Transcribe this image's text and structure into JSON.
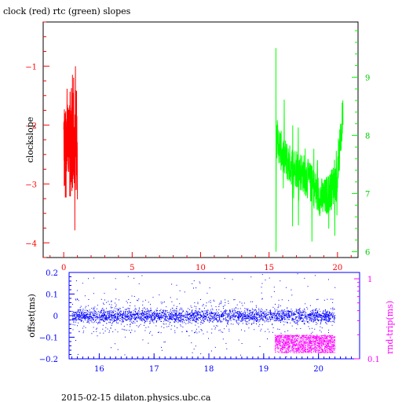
{
  "chart_data": [
    {
      "type": "line",
      "title": "clock (red) rtc (green) slopes",
      "ylabel": "clockslope",
      "xlim": [
        -1.5,
        21.5
      ],
      "ylim": [
        -4.25,
        -0.25
      ],
      "y2lim": [
        5.9,
        9.95
      ],
      "grid": false,
      "x_ticks": [
        0,
        5,
        10,
        15,
        20
      ],
      "y_ticks": [
        -4,
        -3,
        -2,
        -1
      ],
      "y2_ticks": [
        6,
        7,
        8,
        9
      ],
      "colors": {
        "clock": "#ff0000",
        "rtc": "#00ff00",
        "axis": "#000000"
      },
      "series": [
        {
          "name": "clock",
          "axis": "left",
          "x_range": [
            0.0,
            1.0
          ],
          "y_center": -2.3,
          "y_min": -4.1,
          "y_max": -0.5
        },
        {
          "name": "rtc",
          "axis": "right",
          "x_range": [
            15.5,
            20.4
          ],
          "x": [
            15.5,
            16.0,
            16.5,
            17.0,
            17.5,
            18.0,
            18.5,
            19.0,
            19.5,
            20.0,
            20.4
          ],
          "y": [
            8.0,
            7.65,
            7.5,
            7.45,
            7.35,
            7.2,
            7.0,
            6.9,
            7.05,
            7.3,
            8.4
          ]
        }
      ]
    },
    {
      "type": "scatter",
      "ylabel": "offset(ms)",
      "y2label": "rnd-trip(ms)",
      "xlim": [
        15.45,
        20.75
      ],
      "ylim": [
        -0.2,
        0.2
      ],
      "x_ticks": [
        16,
        17,
        18,
        19,
        20
      ],
      "y_ticks": [
        "-0.2",
        "-0.1",
        "0",
        "0.1",
        "0.2"
      ],
      "y2_ticks": [
        "0.1",
        "1"
      ],
      "y2_scale": "log",
      "colors": {
        "offset": "#0000ff",
        "rndtrip": "#ff00ff",
        "axis": "#0000ff"
      },
      "series": [
        {
          "name": "offset",
          "x_range": [
            15.5,
            20.3
          ],
          "y_center": 0.0,
          "y_band": [
            -0.02,
            0.02
          ]
        },
        {
          "name": "rnd-trip",
          "x_range": [
            19.2,
            20.3
          ],
          "y_band_ms": [
            0.12,
            0.2
          ]
        }
      ]
    }
  ],
  "footer": "2015-02-15  dilaton.physics.ubc.ca"
}
